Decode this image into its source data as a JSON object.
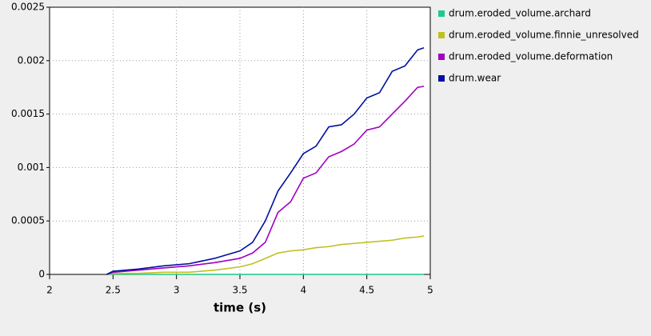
{
  "chart_data": {
    "type": "line",
    "xlabel": "time (s)",
    "x": [
      2.45,
      2.5,
      2.7,
      2.9,
      3.1,
      3.3,
      3.5,
      3.6,
      3.7,
      3.8,
      3.9,
      4.0,
      4.1,
      4.2,
      4.3,
      4.4,
      4.5,
      4.6,
      4.7,
      4.8,
      4.9,
      4.95
    ],
    "series": [
      {
        "name": "drum.eroded_volume.archard",
        "color": "#1fc98a",
        "values": [
          0,
          0,
          0,
          0,
          0,
          0,
          0,
          0,
          0,
          0,
          0,
          0,
          0,
          0,
          0,
          0,
          0,
          0,
          0,
          0,
          0,
          0
        ]
      },
      {
        "name": "drum.eroded_volume.finnie_unresolved",
        "color": "#c0c020",
        "values": [
          0,
          1e-05,
          1e-05,
          2e-05,
          2e-05,
          4e-05,
          7e-05,
          0.0001,
          0.00015,
          0.0002,
          0.00022,
          0.00023,
          0.00025,
          0.00026,
          0.00028,
          0.00029,
          0.0003,
          0.00031,
          0.00032,
          0.00034,
          0.00035,
          0.00036
        ]
      },
      {
        "name": "drum.eroded_volume.deformation",
        "color": "#a000c0",
        "values": [
          0,
          2e-05,
          4e-05,
          6e-05,
          8e-05,
          0.00011,
          0.00015,
          0.0002,
          0.0003,
          0.00058,
          0.00068,
          0.0009,
          0.00095,
          0.0011,
          0.00115,
          0.00122,
          0.00135,
          0.00138,
          0.0015,
          0.00162,
          0.00175,
          0.00176
        ]
      },
      {
        "name": "drum.wear",
        "color": "#0010a0",
        "values": [
          0,
          3e-05,
          5e-05,
          8e-05,
          0.0001,
          0.00015,
          0.00022,
          0.0003,
          0.0005,
          0.00078,
          0.00095,
          0.00113,
          0.0012,
          0.00138,
          0.0014,
          0.0015,
          0.00165,
          0.0017,
          0.0019,
          0.00195,
          0.0021,
          0.00212
        ]
      }
    ],
    "xlim": [
      2,
      5
    ],
    "xticks": [
      2,
      2.5,
      3,
      3.5,
      4,
      4.5,
      5
    ],
    "ylim": [
      0,
      0.0025
    ],
    "yticks": [
      0,
      0.0005,
      0.001,
      0.0015,
      0.002,
      0.0025
    ],
    "grid": true,
    "legend": "right"
  }
}
